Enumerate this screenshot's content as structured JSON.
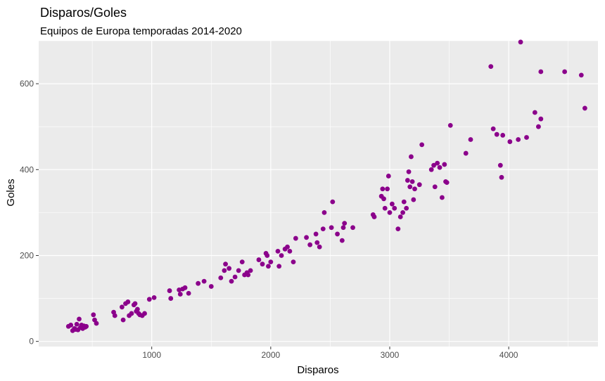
{
  "chart_data": {
    "type": "scatter",
    "title": "Disparos/Goles",
    "subtitle": "Equipos de Europa temporadas 2014-2020",
    "xlabel": "Disparos",
    "ylabel": "Goles",
    "xlim": [
      50,
      4750
    ],
    "ylim": [
      -12,
      700
    ],
    "x_ticks": [
      1000,
      2000,
      3000,
      4000
    ],
    "y_ticks": [
      0,
      200,
      400,
      600
    ],
    "x_tick_labels": [
      "1000",
      "2000",
      "3000",
      "4000"
    ],
    "y_tick_labels": [
      "0",
      "200",
      "400",
      "600"
    ],
    "grid": true,
    "legend": "none",
    "colors": {
      "point": "#8B008B",
      "panel": "#EBEBEB",
      "grid": "#FFFFFF"
    },
    "points": [
      [
        300,
        35
      ],
      [
        320,
        38
      ],
      [
        335,
        25
      ],
      [
        350,
        30
      ],
      [
        360,
        28
      ],
      [
        370,
        40
      ],
      [
        380,
        27
      ],
      [
        390,
        52
      ],
      [
        400,
        32
      ],
      [
        410,
        38
      ],
      [
        420,
        30
      ],
      [
        430,
        36
      ],
      [
        440,
        33
      ],
      [
        450,
        35
      ],
      [
        510,
        62
      ],
      [
        520,
        50
      ],
      [
        535,
        42
      ],
      [
        680,
        68
      ],
      [
        690,
        60
      ],
      [
        750,
        80
      ],
      [
        760,
        50
      ],
      [
        780,
        88
      ],
      [
        800,
        92
      ],
      [
        810,
        60
      ],
      [
        830,
        65
      ],
      [
        850,
        85
      ],
      [
        860,
        88
      ],
      [
        870,
        70
      ],
      [
        880,
        75
      ],
      [
        890,
        65
      ],
      [
        900,
        62
      ],
      [
        920,
        60
      ],
      [
        940,
        65
      ],
      [
        980,
        98
      ],
      [
        1020,
        102
      ],
      [
        1150,
        118
      ],
      [
        1160,
        100
      ],
      [
        1230,
        120
      ],
      [
        1240,
        110
      ],
      [
        1260,
        122
      ],
      [
        1280,
        125
      ],
      [
        1310,
        112
      ],
      [
        1390,
        135
      ],
      [
        1440,
        140
      ],
      [
        1500,
        128
      ],
      [
        1580,
        148
      ],
      [
        1610,
        165
      ],
      [
        1620,
        180
      ],
      [
        1650,
        170
      ],
      [
        1670,
        140
      ],
      [
        1700,
        150
      ],
      [
        1730,
        165
      ],
      [
        1760,
        185
      ],
      [
        1780,
        155
      ],
      [
        1800,
        160
      ],
      [
        1810,
        155
      ],
      [
        1830,
        165
      ],
      [
        1900,
        190
      ],
      [
        1930,
        180
      ],
      [
        1960,
        205
      ],
      [
        1970,
        200
      ],
      [
        1980,
        175
      ],
      [
        2000,
        185
      ],
      [
        2060,
        210
      ],
      [
        2070,
        175
      ],
      [
        2090,
        200
      ],
      [
        2120,
        215
      ],
      [
        2140,
        220
      ],
      [
        2160,
        210
      ],
      [
        2190,
        185
      ],
      [
        2210,
        240
      ],
      [
        2300,
        242
      ],
      [
        2330,
        225
      ],
      [
        2380,
        250
      ],
      [
        2390,
        230
      ],
      [
        2410,
        220
      ],
      [
        2440,
        262
      ],
      [
        2450,
        300
      ],
      [
        2510,
        265
      ],
      [
        2520,
        325
      ],
      [
        2560,
        250
      ],
      [
        2600,
        235
      ],
      [
        2610,
        265
      ],
      [
        2620,
        275
      ],
      [
        2690,
        265
      ],
      [
        2860,
        295
      ],
      [
        2870,
        290
      ],
      [
        2930,
        338
      ],
      [
        2940,
        355
      ],
      [
        2950,
        332
      ],
      [
        2960,
        310
      ],
      [
        2980,
        355
      ],
      [
        2990,
        385
      ],
      [
        3000,
        300
      ],
      [
        3020,
        320
      ],
      [
        3040,
        310
      ],
      [
        3070,
        262
      ],
      [
        3090,
        290
      ],
      [
        3110,
        300
      ],
      [
        3120,
        325
      ],
      [
        3140,
        310
      ],
      [
        3150,
        375
      ],
      [
        3160,
        395
      ],
      [
        3170,
        360
      ],
      [
        3180,
        430
      ],
      [
        3190,
        372
      ],
      [
        3200,
        330
      ],
      [
        3210,
        355
      ],
      [
        3250,
        365
      ],
      [
        3270,
        458
      ],
      [
        3350,
        400
      ],
      [
        3370,
        410
      ],
      [
        3380,
        360
      ],
      [
        3400,
        415
      ],
      [
        3420,
        405
      ],
      [
        3440,
        335
      ],
      [
        3460,
        412
      ],
      [
        3470,
        372
      ],
      [
        3480,
        370
      ],
      [
        3510,
        503
      ],
      [
        3640,
        438
      ],
      [
        3680,
        470
      ],
      [
        3850,
        640
      ],
      [
        3870,
        495
      ],
      [
        3900,
        482
      ],
      [
        3930,
        410
      ],
      [
        3940,
        382
      ],
      [
        3950,
        480
      ],
      [
        4010,
        465
      ],
      [
        4080,
        470
      ],
      [
        4100,
        697
      ],
      [
        4150,
        475
      ],
      [
        4220,
        533
      ],
      [
        4250,
        500
      ],
      [
        4270,
        518
      ],
      [
        4270,
        628
      ],
      [
        4470,
        628
      ],
      [
        4610,
        620
      ],
      [
        4640,
        543
      ]
    ]
  }
}
